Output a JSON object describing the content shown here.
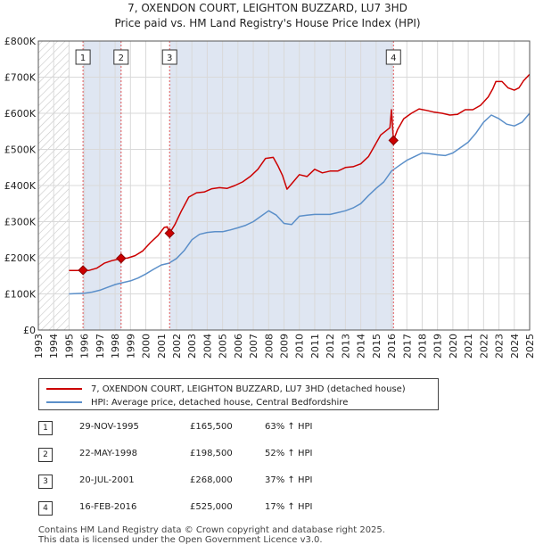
{
  "title_line1": "7, OXENDON COURT, LEIGHTON BUZZARD, LU7 3HD",
  "title_line2": "Price paid vs. HM Land Registry's House Price Index (HPI)",
  "colors": {
    "property": "#cc0000",
    "hpi": "#5b8fc9",
    "shade": "#dfe6f2",
    "grid": "#d9d9d9",
    "marker_line": "#e05555"
  },
  "chart_data": {
    "type": "line",
    "title": "7, OXENDON COURT, LEIGHTON BUZZARD, LU7 3HD",
    "subtitle": "Price paid vs. HM Land Registry's House Price Index (HPI)",
    "xlabel": "",
    "ylabel": "",
    "xlim": [
      1993,
      2025
    ],
    "ylim": [
      0,
      800000
    ],
    "y_ticks": [
      0,
      100000,
      200000,
      300000,
      400000,
      500000,
      600000,
      700000,
      800000
    ],
    "y_tick_labels": [
      "£0",
      "£100K",
      "£200K",
      "£300K",
      "£400K",
      "£500K",
      "£600K",
      "£700K",
      "£800K"
    ],
    "x_ticks": [
      1993,
      1994,
      1995,
      1996,
      1997,
      1998,
      1999,
      2000,
      2001,
      2002,
      2003,
      2004,
      2005,
      2006,
      2007,
      2008,
      2009,
      2010,
      2011,
      2012,
      2013,
      2014,
      2015,
      2016,
      2017,
      2018,
      2019,
      2020,
      2021,
      2022,
      2023,
      2024,
      2025
    ],
    "x_tick_labels": [
      "1993",
      "1994",
      "1995",
      "1996",
      "1997",
      "1998",
      "1999",
      "2000",
      "2001",
      "2002",
      "2003",
      "2004",
      "2005",
      "2006",
      "2007",
      "2008",
      "2009",
      "2010",
      "2011",
      "2012",
      "2013",
      "2014",
      "2015",
      "2016",
      "2017",
      "2018",
      "2019",
      "2020",
      "2021",
      "2022",
      "2023",
      "2024",
      "2025"
    ],
    "grid": true,
    "hatched_range": [
      1993,
      1995
    ],
    "series": [
      {
        "name": "7, OXENDON COURT, LEIGHTON BUZZARD, LU7 3HD (detached house)",
        "color": "#cc0000",
        "x": [
          1995.0,
          1995.5,
          1995.91,
          1996.3,
          1996.8,
          1997.3,
          1997.8,
          1998.2,
          1998.39,
          1998.8,
          1999.3,
          1999.8,
          2000.3,
          2000.8,
          2001.2,
          2001.4,
          2001.55,
          2001.9,
          2002.3,
          2002.8,
          2003.3,
          2003.8,
          2004.3,
          2004.8,
          2005.3,
          2005.8,
          2006.3,
          2006.8,
          2007.3,
          2007.8,
          2008.3,
          2008.6,
          2008.9,
          2009.2,
          2009.6,
          2010.0,
          2010.5,
          2011.0,
          2011.5,
          2012.0,
          2012.5,
          2013.0,
          2013.5,
          2014.0,
          2014.5,
          2014.9,
          2015.3,
          2015.6,
          2015.9,
          2016.0,
          2016.13,
          2016.4,
          2016.8,
          2017.3,
          2017.8,
          2018.3,
          2018.8,
          2019.3,
          2019.8,
          2020.3,
          2020.8,
          2021.3,
          2021.8,
          2022.3,
          2022.6,
          2022.8,
          2023.2,
          2023.6,
          2024.0,
          2024.3,
          2024.6,
          2025.0
        ],
        "values": [
          165000,
          165000,
          165500,
          165000,
          171000,
          185000,
          192000,
          196000,
          198500,
          199000,
          206000,
          219000,
          242000,
          262000,
          284000,
          286000,
          268000,
          292000,
          328000,
          368000,
          380000,
          382000,
          391000,
          394000,
          392000,
          400000,
          410000,
          425000,
          445000,
          475000,
          478000,
          455000,
          428000,
          390000,
          410000,
          430000,
          425000,
          445000,
          435000,
          440000,
          440000,
          450000,
          452000,
          460000,
          480000,
          510000,
          540000,
          550000,
          560000,
          610000,
          525000,
          555000,
          585000,
          600000,
          612000,
          608000,
          603000,
          600000,
          595000,
          597000,
          610000,
          610000,
          622000,
          645000,
          668000,
          688000,
          688000,
          670000,
          664000,
          670000,
          690000,
          708000
        ]
      },
      {
        "name": "HPI: Average price, detached house, Central Bedfordshire",
        "color": "#5b8fc9",
        "x": [
          1995.0,
          1995.5,
          1996.0,
          1996.5,
          1997.0,
          1997.5,
          1998.0,
          1998.5,
          1999.0,
          1999.5,
          2000.0,
          2000.5,
          2001.0,
          2001.5,
          2002.0,
          2002.5,
          2003.0,
          2003.5,
          2004.0,
          2004.5,
          2005.0,
          2005.5,
          2006.0,
          2006.5,
          2007.0,
          2007.5,
          2008.0,
          2008.5,
          2009.0,
          2009.5,
          2010.0,
          2010.5,
          2011.0,
          2011.5,
          2012.0,
          2012.5,
          2013.0,
          2013.5,
          2014.0,
          2014.5,
          2015.0,
          2015.5,
          2016.0,
          2016.5,
          2017.0,
          2017.5,
          2018.0,
          2018.5,
          2019.0,
          2019.5,
          2020.0,
          2020.5,
          2021.0,
          2021.5,
          2022.0,
          2022.5,
          2023.0,
          2023.5,
          2024.0,
          2024.5,
          2025.0
        ],
        "values": [
          100000,
          101000,
          102000,
          105000,
          110000,
          118000,
          126000,
          131000,
          136000,
          144000,
          155000,
          168000,
          180000,
          185000,
          198000,
          220000,
          250000,
          265000,
          270000,
          272000,
          272000,
          277000,
          283000,
          290000,
          300000,
          315000,
          330000,
          318000,
          295000,
          292000,
          315000,
          318000,
          320000,
          320000,
          320000,
          325000,
          330000,
          338000,
          350000,
          372000,
          392000,
          410000,
          440000,
          455000,
          470000,
          480000,
          490000,
          488000,
          485000,
          483000,
          490000,
          505000,
          520000,
          545000,
          575000,
          595000,
          585000,
          570000,
          565000,
          575000,
          600000
        ]
      }
    ],
    "transactions": [
      {
        "id": "1",
        "x": 1995.91,
        "price": 165500
      },
      {
        "id": "2",
        "x": 1998.39,
        "price": 198500
      },
      {
        "id": "3",
        "x": 2001.55,
        "price": 268000
      },
      {
        "id": "4",
        "x": 2016.13,
        "price": 525000
      }
    ],
    "legend_position": "bottom"
  },
  "legend": {
    "property_label": "7, OXENDON COURT, LEIGHTON BUZZARD, LU7 3HD (detached house)",
    "hpi_label": "HPI: Average price, detached house, Central Bedfordshire"
  },
  "table": [
    {
      "num": "1",
      "date": "29-NOV-1995",
      "price": "£165,500",
      "hpi": "63% ↑ HPI"
    },
    {
      "num": "2",
      "date": "22-MAY-1998",
      "price": "£198,500",
      "hpi": "52% ↑ HPI"
    },
    {
      "num": "3",
      "date": "20-JUL-2001",
      "price": "£268,000",
      "hpi": "37% ↑ HPI"
    },
    {
      "num": "4",
      "date": "16-FEB-2016",
      "price": "£525,000",
      "hpi": "17% ↑ HPI"
    }
  ],
  "footer": {
    "line1": "Contains HM Land Registry data © Crown copyright and database right 2025.",
    "line2": "This data is licensed under the Open Government Licence v3.0."
  }
}
